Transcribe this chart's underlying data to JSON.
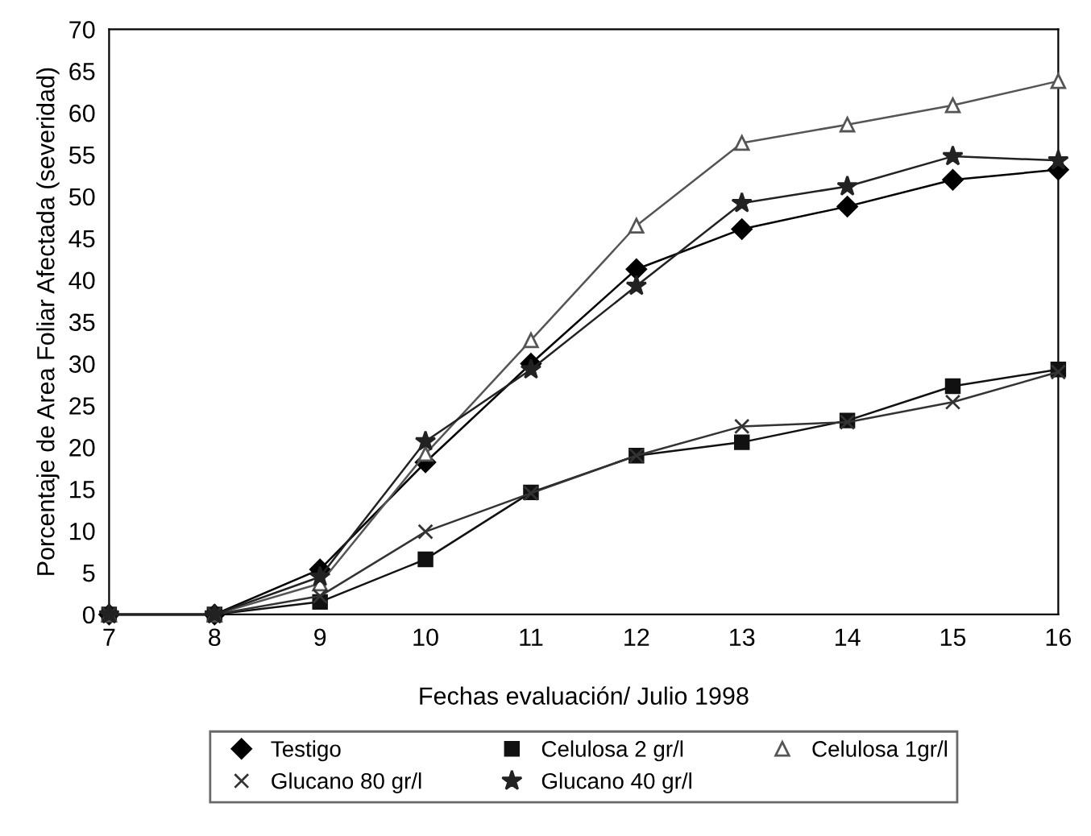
{
  "chart_data": {
    "type": "line",
    "xlabel": "Fechas evaluación/ Julio 1998",
    "ylabel": "Porcentaje de Area Foliar Afectada (severidad)",
    "x": [
      7,
      8,
      9,
      10,
      11,
      12,
      13,
      14,
      15,
      16
    ],
    "xlim": [
      7,
      16
    ],
    "xticks": [
      7,
      8,
      9,
      10,
      11,
      12,
      13,
      14,
      15,
      16
    ],
    "ylim": [
      0,
      70
    ],
    "yticks": [
      0,
      5,
      10,
      15,
      20,
      25,
      30,
      35,
      40,
      45,
      50,
      55,
      60,
      65,
      70
    ],
    "grid": false,
    "legend": "bottom",
    "line_style": "solid",
    "series": [
      {
        "name": "Testigo",
        "color": "#000000",
        "marker": "diamond",
        "values": [
          0,
          0,
          5.4,
          18.2,
          30,
          41.3,
          46.1,
          48.8,
          52,
          53.2
        ]
      },
      {
        "name": "Celulosa 2 gr/l",
        "color": "#111111",
        "marker": "square",
        "values": [
          0,
          0,
          1.5,
          6.6,
          14.6,
          19,
          20.6,
          23.2,
          27.3,
          29.3
        ]
      },
      {
        "name": "Celulosa 1gr/l",
        "color": "#555555",
        "marker": "triangle",
        "values": [
          0,
          0,
          3.7,
          19.2,
          32.8,
          46.5,
          56.4,
          58.6,
          60.9,
          63.8
        ]
      },
      {
        "name": "Glucano 80 gr/l",
        "color": "#333333",
        "marker": "cross",
        "values": [
          0,
          0,
          2.2,
          9.9,
          14.5,
          19,
          22.5,
          23,
          25.4,
          29
        ]
      },
      {
        "name": "Glucano 40 gr/l",
        "color": "#222222",
        "marker": "star",
        "values": [
          0,
          0,
          4.5,
          20.7,
          29.3,
          39.3,
          49.2,
          51.2,
          54.8,
          54.3
        ]
      }
    ]
  }
}
